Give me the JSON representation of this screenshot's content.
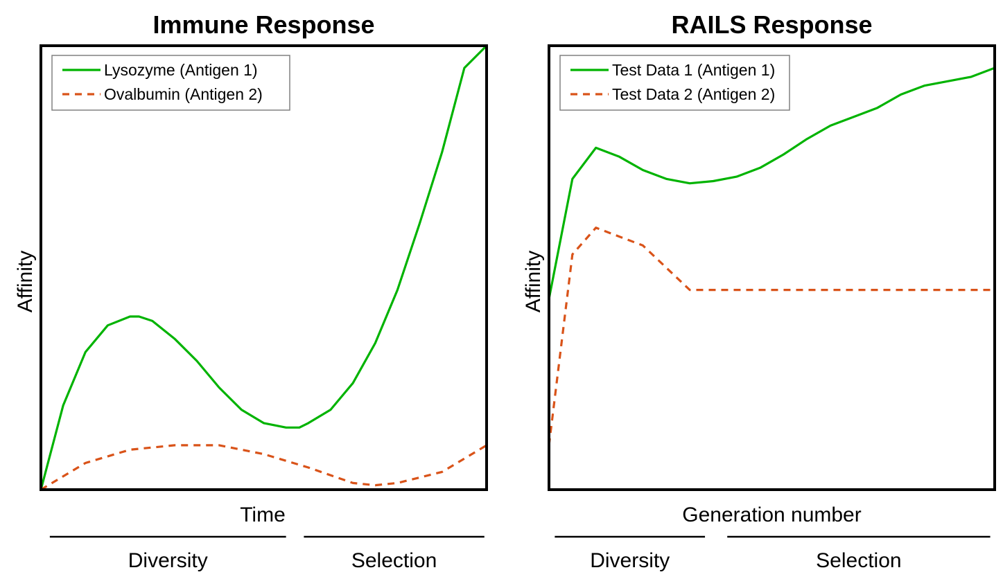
{
  "chart_data": [
    {
      "type": "line",
      "title": "Immune Response",
      "xlabel": "Time",
      "ylabel": "Affinity",
      "xlim": [
        0,
        1
      ],
      "ylim": [
        0,
        1
      ],
      "grid": false,
      "legend": "top-left",
      "phases": [
        {
          "label": "Diversity",
          "range": [
            0.02,
            0.55
          ]
        },
        {
          "label": "Selection",
          "range": [
            0.59,
            0.995
          ]
        }
      ],
      "series": [
        {
          "name": "Lysozyme (Antigen 1)",
          "color": "#00b300",
          "dash": "solid",
          "x": [
            0,
            0.05,
            0.1,
            0.15,
            0.2,
            0.22,
            0.25,
            0.3,
            0.35,
            0.4,
            0.45,
            0.5,
            0.55,
            0.58,
            0.6,
            0.65,
            0.7,
            0.75,
            0.8,
            0.85,
            0.9,
            0.95,
            1.0
          ],
          "y": [
            0,
            0.19,
            0.31,
            0.37,
            0.39,
            0.39,
            0.38,
            0.34,
            0.29,
            0.23,
            0.18,
            0.15,
            0.14,
            0.14,
            0.15,
            0.18,
            0.24,
            0.33,
            0.45,
            0.6,
            0.76,
            0.95,
            1.0
          ]
        },
        {
          "name": "Ovalbumin (Antigen 2)",
          "color": "#d95319",
          "dash": "dashed",
          "x": [
            0,
            0.1,
            0.2,
            0.3,
            0.35,
            0.4,
            0.5,
            0.6,
            0.7,
            0.75,
            0.8,
            0.9,
            1.0
          ],
          "y": [
            0,
            0.06,
            0.09,
            0.1,
            0.1,
            0.1,
            0.08,
            0.05,
            0.015,
            0.01,
            0.015,
            0.04,
            0.1
          ]
        }
      ]
    },
    {
      "type": "line",
      "title": "RAILS Response",
      "xlabel": "Generation number",
      "ylabel": "Affinity",
      "xlim": [
        0,
        19
      ],
      "ylim": [
        0,
        1
      ],
      "grid": false,
      "legend": "top-left",
      "phases": [
        {
          "label": "Diversity",
          "range": [
            0.013,
            0.35
          ]
        },
        {
          "label": "Selection",
          "range": [
            0.4,
            0.99
          ]
        }
      ],
      "series": [
        {
          "name": "Test Data 1 (Antigen 1)",
          "color": "#00b300",
          "dash": "solid",
          "x": [
            0,
            1,
            2,
            3,
            4,
            5,
            6,
            7,
            8,
            9,
            10,
            11,
            12,
            13,
            14,
            15,
            16,
            17,
            18,
            19
          ],
          "y": [
            0.43,
            0.7,
            0.77,
            0.75,
            0.72,
            0.7,
            0.69,
            0.695,
            0.705,
            0.725,
            0.755,
            0.79,
            0.82,
            0.84,
            0.86,
            0.89,
            0.91,
            0.92,
            0.93,
            0.95
          ]
        },
        {
          "name": "Test Data 2 (Antigen 2)",
          "color": "#d95319",
          "dash": "dashed",
          "x": [
            0,
            1,
            2,
            3,
            4,
            5,
            6,
            7,
            8,
            9,
            10,
            11,
            12,
            13,
            14,
            15,
            16,
            17,
            18,
            19
          ],
          "y": [
            0.1,
            0.53,
            0.59,
            0.57,
            0.55,
            0.5,
            0.45,
            0.45,
            0.45,
            0.45,
            0.45,
            0.45,
            0.45,
            0.45,
            0.45,
            0.45,
            0.45,
            0.45,
            0.45,
            0.45
          ]
        }
      ]
    }
  ]
}
